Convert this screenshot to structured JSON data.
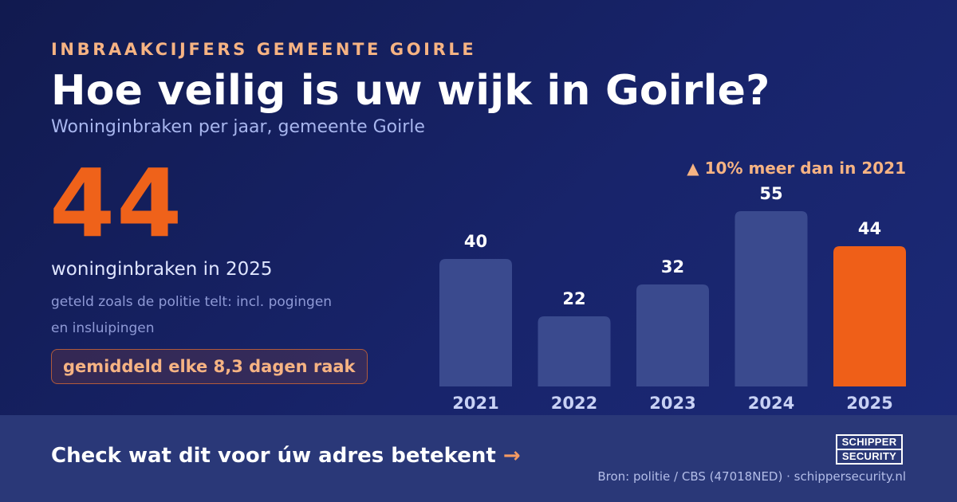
{
  "header": {
    "eyebrow": "INBRAAKCIJFERS GEMEENTE GOIRLE",
    "title": "Hoe veilig is uw wijk in Goirle?",
    "subtitle": "Woninginbraken per jaar, gemeente Goirle"
  },
  "highlight": {
    "number": "44",
    "label": "woninginbraken in 2025",
    "note": "geteld zoals de politie telt: incl. pogingen en insluipingen",
    "pill": "gemiddeld elke 8,3 dagen raak"
  },
  "chart_data": {
    "type": "bar",
    "categories": [
      "2021",
      "2022",
      "2023",
      "2024",
      "2025"
    ],
    "values": [
      40,
      22,
      32,
      55,
      44
    ],
    "highlight_category": "2025",
    "annotation": "▲ 10% meer dan in 2021",
    "ylim": [
      0,
      55
    ],
    "grid": false,
    "colors": {
      "bar": "#3a4a8e",
      "highlight": "#ef5f18",
      "value_label": "#ffffff",
      "category_label": "#c8d1f4",
      "annotation": "#f6b383"
    }
  },
  "footer": {
    "cta": "Check wat dit voor úw adres betekent",
    "cta_arrow": "→",
    "source": "Bron: politie / CBS (47018NED) · schippersecurity.nl",
    "logo_top": "SCHIPPER",
    "logo_bottom": "SECURITY"
  }
}
